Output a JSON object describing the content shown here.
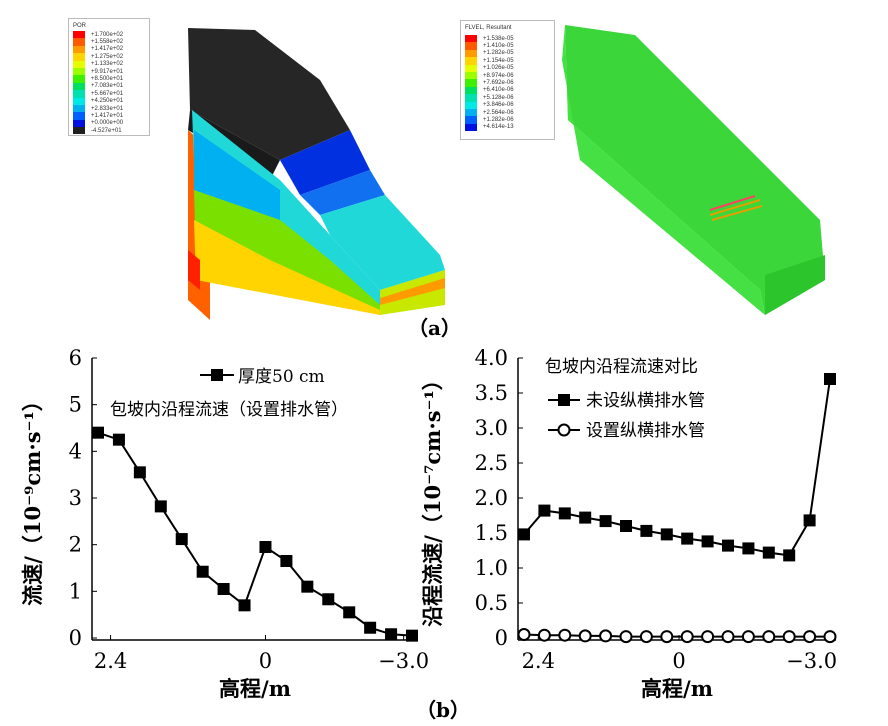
{
  "panel_a": {
    "caption": "（a）",
    "left_legend": {
      "title": "POR",
      "labels": [
        "+1.700e+02",
        "+1.558e+02",
        "+1.417e+02",
        "+1.275e+02",
        "+1.133e+02",
        "+9.917e+01",
        "+8.500e+01",
        "+7.083e+01",
        "+5.667e+01",
        "+4.250e+01",
        "+2.833e+01",
        "+1.417e+01",
        "+0.000e+00",
        "-4.527e+01"
      ],
      "colors": [
        "#ff0000",
        "#ff5a00",
        "#ff9a00",
        "#ffd400",
        "#e6ff00",
        "#9cff00",
        "#3cf000",
        "#00e060",
        "#00e0b0",
        "#00e8e8",
        "#00b0f0",
        "#0060ff",
        "#0010e0",
        "#202020"
      ]
    },
    "right_legend": {
      "title": "FLVEL, Resultant",
      "labels": [
        "+1.538e-05",
        "+1.410e-05",
        "+1.282e-05",
        "+1.154e-05",
        "+1.026e-05",
        "+8.974e-06",
        "+7.692e-06",
        "+6.410e-06",
        "+5.128e-06",
        "+3.846e-06",
        "+2.564e-06",
        "+1.282e-06",
        "+4.614e-13"
      ],
      "colors": [
        "#ff0000",
        "#ff5a00",
        "#ff9a00",
        "#ffd400",
        "#e6ff00",
        "#9cff00",
        "#3cf000",
        "#00e060",
        "#00e0b0",
        "#00e8e8",
        "#00b0f0",
        "#0060ff",
        "#0010e0"
      ]
    }
  },
  "panel_b": {
    "caption": "（b）"
  },
  "chart_data": [
    {
      "type": "line",
      "title": "包坡内沿程流速（设置排水管）",
      "xlabel": "高程/m",
      "ylabel": "流速/（10⁻⁹cm·s⁻¹）",
      "ylim": [
        0,
        6
      ],
      "yticks": [
        "0",
        "1",
        "2",
        "3",
        "4",
        "5",
        "6"
      ],
      "xticks": [
        {
          "pos": 0.6,
          "label": "2.4"
        },
        {
          "pos": 8,
          "label": "0"
        },
        {
          "pos": 14.6,
          "label": "−3.0"
        }
      ],
      "xlim": [
        0,
        15
      ],
      "series": [
        {
          "name": "厚度50 cm",
          "marker": "square",
          "values": [
            4.4,
            4.25,
            3.55,
            2.82,
            2.12,
            1.42,
            1.05,
            0.7,
            1.95,
            1.65,
            1.1,
            0.83,
            0.55,
            0.22,
            0.08,
            0.05
          ]
        }
      ],
      "legend": "top-center"
    },
    {
      "type": "line",
      "title": "包坡内沿程流速对比",
      "xlabel": "高程/m",
      "ylabel": "沿程流速/（10⁻⁷cm·s⁻¹）",
      "ylim": [
        0,
        4.0
      ],
      "yticks": [
        "0",
        "0.5",
        "1.0",
        "1.5",
        "2.0",
        "2.5",
        "3.0",
        "3.5",
        "4.0"
      ],
      "xticks": [
        {
          "pos": 0.7,
          "label": "2.4"
        },
        {
          "pos": 7.6,
          "label": "0"
        },
        {
          "pos": 14.1,
          "label": "−3.0"
        }
      ],
      "xlim": [
        0,
        15
      ],
      "series": [
        {
          "name": "未设纵横排水管",
          "marker": "square",
          "values": [
            1.48,
            1.82,
            1.78,
            1.72,
            1.67,
            1.6,
            1.53,
            1.48,
            1.42,
            1.38,
            1.32,
            1.28,
            1.22,
            1.18,
            1.68,
            3.7
          ]
        },
        {
          "name": "设置纵横排水管",
          "marker": "circle",
          "values": [
            0.05,
            0.04,
            0.04,
            0.03,
            0.03,
            0.02,
            0.02,
            0.02,
            0.02,
            0.02,
            0.02,
            0.02,
            0.02,
            0.02,
            0.02,
            0.02
          ]
        }
      ],
      "legend": "top-left"
    }
  ]
}
